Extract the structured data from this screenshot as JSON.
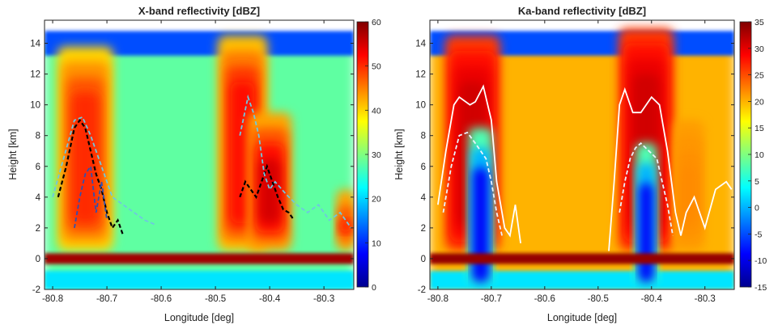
{
  "chart_data": [
    {
      "type": "heatmap",
      "title": "X-band reflectivity [dBZ]",
      "xlabel": "Longitude [deg]",
      "ylabel": "Height [km]",
      "xlim": [
        -80.815,
        -80.245
      ],
      "ylim": [
        -2,
        15.5
      ],
      "xticks": [
        -80.8,
        -80.7,
        -80.6,
        -80.5,
        -80.4,
        -80.3
      ],
      "yticks": [
        -2,
        0,
        2,
        4,
        6,
        8,
        10,
        12,
        14
      ],
      "colorbar": {
        "ticks": [
          0,
          10,
          20,
          30,
          40,
          50,
          60
        ],
        "range": [
          0,
          60
        ],
        "colormap": "jet"
      },
      "cells": [
        {
          "x": -80.74,
          "width": 0.09,
          "top": 13.8,
          "peak": 50
        },
        {
          "x": -80.45,
          "width": 0.08,
          "top": 14.5,
          "peak": 52
        },
        {
          "x": -80.4,
          "width": 0.07,
          "top": 9.5,
          "peak": 55
        },
        {
          "x": -80.26,
          "width": 0.03,
          "top": 4.5,
          "peak": 55
        }
      ],
      "background_dbz": 28,
      "bright_band": {
        "height": 0,
        "dbz": 58
      },
      "contours": [
        {
          "name": "black",
          "color": "#000000",
          "x": [
            -80.79,
            -80.775,
            -80.76,
            -80.75,
            -80.74,
            -80.73,
            -80.72,
            -80.71,
            -80.7,
            -80.69,
            -80.68,
            -80.67
          ],
          "y": [
            4,
            6,
            8.5,
            9,
            8.5,
            7,
            5.5,
            4.5,
            3,
            2,
            2.5,
            1.5
          ]
        },
        {
          "name": "black-2",
          "color": "#000000",
          "x": [
            -80.455,
            -80.445,
            -80.435,
            -80.425,
            -80.415,
            -80.405,
            -80.395,
            -80.385,
            -80.375,
            -80.365,
            -80.355
          ],
          "y": [
            4,
            5,
            4.5,
            4,
            5,
            6,
            5,
            4,
            3.2,
            3,
            2.5
          ]
        },
        {
          "name": "cyan",
          "color": "#6ec8e0",
          "x": [
            -80.8,
            -80.78,
            -80.76,
            -80.745,
            -80.73,
            -80.71,
            -80.69,
            -80.67,
            -80.65,
            -80.63,
            -80.61
          ],
          "y": [
            4,
            6.5,
            9,
            9.2,
            8,
            6,
            4,
            3.5,
            3,
            2.5,
            2.2
          ]
        },
        {
          "name": "cyan-2",
          "color": "#6ec8e0",
          "x": [
            -80.455,
            -80.44,
            -80.43,
            -80.42,
            -80.41,
            -80.4,
            -80.39,
            -80.37,
            -80.35,
            -80.33,
            -80.31,
            -80.29,
            -80.27,
            -80.25
          ],
          "y": [
            8,
            10.5,
            9.5,
            8,
            5.5,
            4.5,
            5,
            4.2,
            3.5,
            3,
            3.5,
            2.5,
            3,
            2
          ]
        },
        {
          "name": "blue",
          "color": "#3050b0",
          "x": [
            -80.76,
            -80.75,
            -80.74,
            -80.73,
            -80.725,
            -80.72,
            -80.71,
            -80.7
          ],
          "y": [
            2,
            4,
            5.5,
            6,
            4.5,
            3,
            5,
            2.5
          ]
        }
      ]
    },
    {
      "type": "heatmap",
      "title": "Ka-band reflectivity [dBZ]",
      "xlabel": "Longitude [deg]",
      "ylabel": "Height [km]",
      "xlim": [
        -80.815,
        -80.245
      ],
      "ylim": [
        -2,
        15.5
      ],
      "xticks": [
        -80.8,
        -80.7,
        -80.6,
        -80.5,
        -80.4,
        -80.3
      ],
      "yticks": [
        -2,
        0,
        2,
        4,
        6,
        8,
        10,
        12,
        14
      ],
      "colorbar": {
        "ticks": [
          -15,
          -10,
          -5,
          0,
          5,
          10,
          15,
          20,
          25,
          30,
          35
        ],
        "range": [
          -15,
          35
        ],
        "colormap": "jet"
      },
      "cells": [
        {
          "x": -80.735,
          "width": 0.09,
          "top": 14.5,
          "peak": 31
        },
        {
          "x": -80.41,
          "width": 0.09,
          "top": 15,
          "peak": 31
        },
        {
          "x": -80.33,
          "width": 0.05,
          "top": 9,
          "peak": 22
        }
      ],
      "background_dbz": 20,
      "bright_band": {
        "height": 0,
        "dbz": 34
      },
      "attenuated": [
        {
          "x": -80.72,
          "width": 0.045,
          "top": 8.5
        },
        {
          "x": -80.41,
          "width": 0.04,
          "top": 7.5
        }
      ],
      "contours": [
        {
          "name": "white-outer",
          "color": "#ffffff",
          "x": [
            -80.8,
            -80.785,
            -80.77,
            -80.76,
            -80.74,
            -80.73,
            -80.715,
            -80.7,
            -80.69,
            -80.675,
            -80.665,
            -80.655,
            -80.645
          ],
          "y": [
            3.5,
            7,
            10,
            10.5,
            10,
            10.2,
            11.2,
            9,
            5,
            2,
            1.5,
            3.5,
            1
          ]
        },
        {
          "name": "white-outer-2",
          "color": "#ffffff",
          "x": [
            -80.48,
            -80.47,
            -80.46,
            -80.45,
            -80.435,
            -80.42,
            -80.4,
            -80.385,
            -80.37,
            -80.355,
            -80.345,
            -80.335,
            -80.32,
            -80.3,
            -80.28,
            -80.26,
            -80.25
          ],
          "y": [
            0.5,
            5,
            10,
            11,
            9.5,
            9.5,
            10.5,
            10,
            7,
            3,
            1.5,
            3,
            4,
            2,
            4.5,
            5,
            4.5
          ]
        },
        {
          "name": "white-inner",
          "color": "#eaf4ff",
          "x": [
            -80.79,
            -80.775,
            -80.76,
            -80.745,
            -80.73,
            -80.72,
            -80.71,
            -80.7,
            -80.69,
            -80.68
          ],
          "y": [
            3,
            6,
            8,
            8.2,
            7.5,
            7,
            6.5,
            5,
            3,
            1.5
          ]
        },
        {
          "name": "white-inner-2",
          "color": "#eaf4ff",
          "x": [
            -80.46,
            -80.45,
            -80.44,
            -80.43,
            -80.42,
            -80.405,
            -80.39,
            -80.38,
            -80.37,
            -80.36
          ],
          "y": [
            3,
            5,
            6.5,
            7.2,
            7.5,
            7,
            6.5,
            5,
            3.5,
            1.5
          ]
        }
      ]
    }
  ]
}
